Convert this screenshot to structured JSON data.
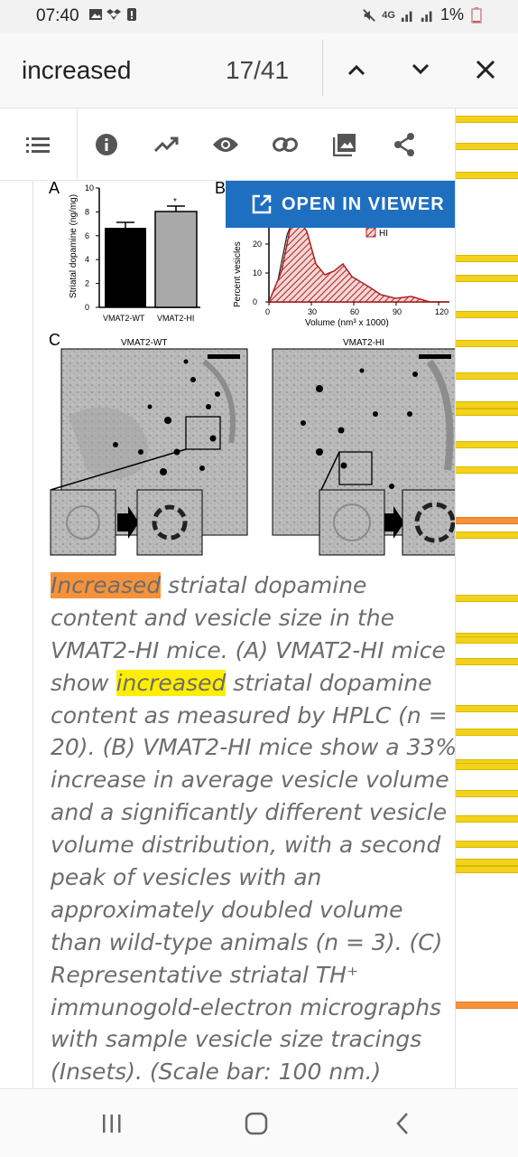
{
  "status_bar": {
    "time": "07:40",
    "network": "4G",
    "battery": "1%"
  },
  "find_bar": {
    "query": "increased",
    "match_counter": "17/41"
  },
  "toolbar": {
    "icons": [
      "list-icon",
      "info-icon",
      "trending-icon",
      "eye-icon",
      "link-icon",
      "image-icon",
      "share-icon"
    ]
  },
  "viewer_button": {
    "label": "OPEN IN VIEWER"
  },
  "figure": {
    "panel_a": {
      "letter": "A",
      "ylabel": "Striatal dopamine (ng/mg)",
      "yticks": [
        "0",
        "2",
        "4",
        "6",
        "8",
        "10"
      ],
      "categories": [
        "VMAT2-WT",
        "VMAT2-HI"
      ],
      "star": "*"
    },
    "panel_b": {
      "letter": "B",
      "ylabel": "Percent vesicles",
      "yticks": [
        "0",
        "10",
        "20"
      ],
      "xticks": [
        "0",
        "30",
        "60",
        "90",
        "120"
      ],
      "xlabel": "Volume (nm³ x 1000)",
      "legend_hi": "HI"
    },
    "panel_c": {
      "letter": "C",
      "left_title": "VMAT2-WT",
      "right_title": "VMAT2-HI"
    }
  },
  "caption": {
    "lines": [
      {
        "pre": "",
        "hl": "Increased",
        "post": " striatal dopamine",
        "kind": "current"
      },
      {
        "pre": "content and vesicle size in the",
        "hl": "",
        "post": "",
        "kind": ""
      },
      {
        "pre": "VMAT2-HI mice. (A) VMAT2-HI mice",
        "hl": "",
        "post": "",
        "kind": ""
      },
      {
        "pre": "show ",
        "hl": "increased",
        "post": " striatal dopamine",
        "kind": "match"
      },
      {
        "pre": "content as measured by HPLC (n =",
        "hl": "",
        "post": "",
        "kind": ""
      },
      {
        "pre": "20). (B) VMAT2-HI mice show a 33%",
        "hl": "",
        "post": "",
        "kind": ""
      },
      {
        "pre": "increase in average vesicle volume",
        "hl": "",
        "post": "",
        "kind": ""
      },
      {
        "pre": "and a significantly different vesicle",
        "hl": "",
        "post": "",
        "kind": ""
      },
      {
        "pre": "volume distribution, with a second",
        "hl": "",
        "post": "",
        "kind": ""
      },
      {
        "pre": "peak of vesicles with an",
        "hl": "",
        "post": "",
        "kind": ""
      },
      {
        "pre": "approximately doubled volume",
        "hl": "",
        "post": "",
        "kind": ""
      },
      {
        "pre": "than wild-type animals (n = 3). (C)",
        "hl": "",
        "post": "",
        "kind": ""
      },
      {
        "pre": "Representative striatal TH⁺",
        "hl": "",
        "post": "",
        "kind": ""
      },
      {
        "pre": "immunogold-electron micrographs",
        "hl": "",
        "post": "",
        "kind": ""
      },
      {
        "pre": "with sample vesicle size tracings",
        "hl": "",
        "post": "",
        "kind": ""
      },
      {
        "pre": "(Insets). (Scale bar: 100 nm.)",
        "hl": "",
        "post": "",
        "kind": ""
      }
    ]
  },
  "highlight_colors": {
    "current_match": "#f6923a",
    "other_match": "#ffee00",
    "viewer_button": "#1f6fc0"
  }
}
